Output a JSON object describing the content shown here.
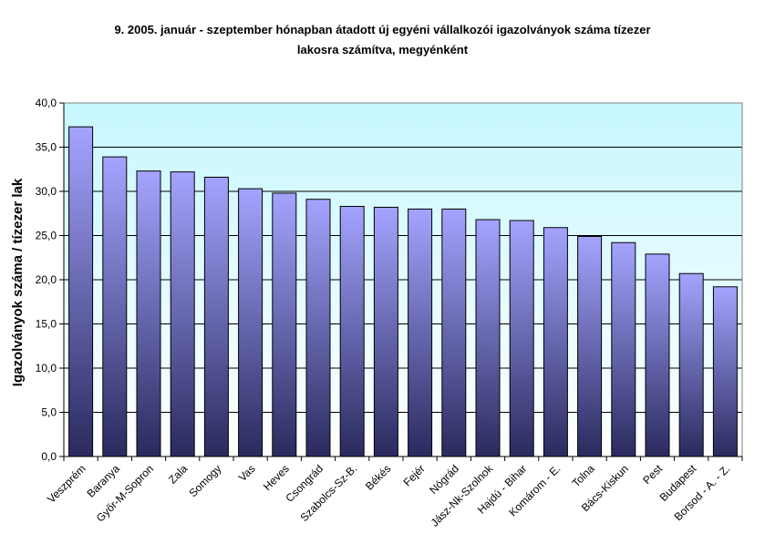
{
  "chart_data": {
    "type": "bar",
    "title_line1": "9.   2005. január - szeptember hónapban átadott új egyéni vállalkozói  igazolványok száma tízezer",
    "title_line2": "lakosra számítva, megyénként",
    "xlabel": "",
    "ylabel": "Igazolványok száma / tízezer lak",
    "ylim": [
      0,
      40
    ],
    "yticks": [
      "0,0",
      "5,0",
      "10,0",
      "15,0",
      "20,0",
      "25,0",
      "30,0",
      "35,0",
      "40,0"
    ],
    "grid": true,
    "legend": "none",
    "categories": [
      "Veszprém",
      "Baranya",
      "Győr-M-Sopron",
      "Zala",
      "Somogy",
      "Vas",
      "Heves",
      "Csongrád",
      "Szabolcs-Sz-B.",
      "Békés",
      "Fejér",
      "Nógrád",
      "Jász-Nk-Szolnok",
      "Hajdú - Bihar",
      "Komárom - E.",
      "Tolna",
      "Bács-Kiskun",
      "Pest",
      "Budapest",
      "Borsod - A. - Z."
    ],
    "values": [
      37.3,
      33.9,
      32.3,
      32.2,
      31.6,
      30.3,
      29.8,
      29.1,
      28.3,
      28.2,
      28.0,
      28.0,
      26.8,
      26.7,
      25.9,
      24.9,
      24.2,
      22.9,
      20.7,
      19.2
    ],
    "colors": {
      "plot_top": "#c7f7ff",
      "plot_bottom": "#ffffff",
      "bar_top": "#a4a4ff",
      "bar_bottom": "#2a2a5e"
    }
  }
}
